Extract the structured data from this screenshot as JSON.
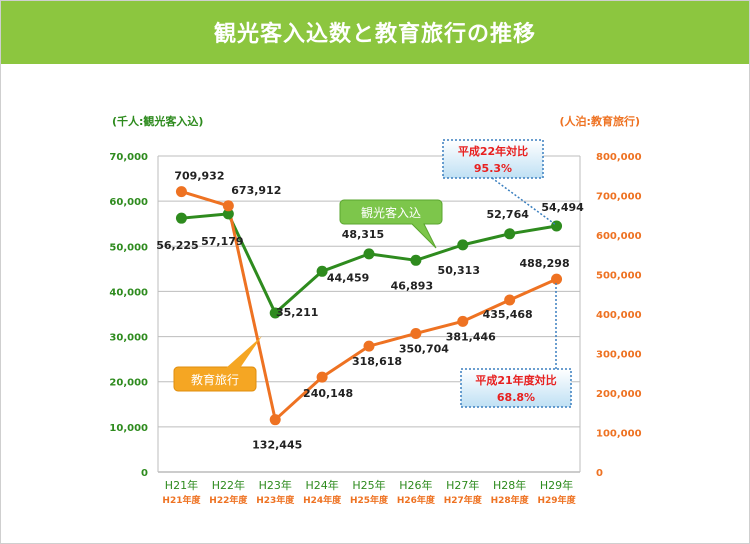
{
  "header": {
    "title": "観光客入込数と教育旅行の推移"
  },
  "chart_data": {
    "type": "line",
    "title": "観光客入込数と教育旅行の推移",
    "left_axis_label": "(千人:観光客入込)",
    "right_axis_label": "(人泊:教育旅行)",
    "categories": [
      "H21年",
      "H22年",
      "H23年",
      "H24年",
      "H25年",
      "H26年",
      "H27年",
      "H28年",
      "H29年"
    ],
    "categories2": [
      "H21年度",
      "H22年度",
      "H23年度",
      "H24年度",
      "H25年度",
      "H26年度",
      "H27年度",
      "H28年度",
      "H29年度"
    ],
    "y_left": {
      "min": 0,
      "max": 70000,
      "ticks": [
        "0",
        "10,000",
        "20,000",
        "30,000",
        "40,000",
        "50,000",
        "60,000",
        "70,000"
      ]
    },
    "y_right": {
      "min": 0,
      "max": 800000,
      "ticks": [
        "0",
        "100,000",
        "200,000",
        "300,000",
        "400,000",
        "500,000",
        "600,000",
        "700,000",
        "800,000"
      ]
    },
    "series": [
      {
        "name": "観光客入込",
        "axis": "left",
        "color": "#2e8b1e",
        "values": [
          56225,
          57179,
          35211,
          44459,
          48315,
          46893,
          50313,
          52764,
          54494
        ],
        "labels": [
          "56,225",
          "57,179",
          "35,211",
          "44,459",
          "48,315",
          "46,893",
          "50,313",
          "52,764",
          "54,494"
        ]
      },
      {
        "name": "教育旅行",
        "axis": "right",
        "color": "#ee7222",
        "values": [
          709932,
          673912,
          132445,
          240148,
          318618,
          350704,
          381446,
          435468,
          488298
        ],
        "labels": [
          "709,932",
          "673,912",
          "132,445",
          "240,148",
          "318,618",
          "350,704",
          "381,446",
          "435,468",
          "488,298"
        ]
      }
    ],
    "annotations": [
      {
        "title": "平成22年対比",
        "value": "95.3%"
      },
      {
        "title": "平成21年度対比",
        "value": "68.8%"
      }
    ],
    "grid": true,
    "colors": {
      "header": "#8cc63f",
      "green": "#2e8b1e",
      "orange": "#ee7222",
      "callout_green": "#7dc64b",
      "callout_orange": "#f5a623",
      "left_tick": "#2e8b1e",
      "right_tick": "#ee7222",
      "annot_red": "#e8201f"
    }
  }
}
